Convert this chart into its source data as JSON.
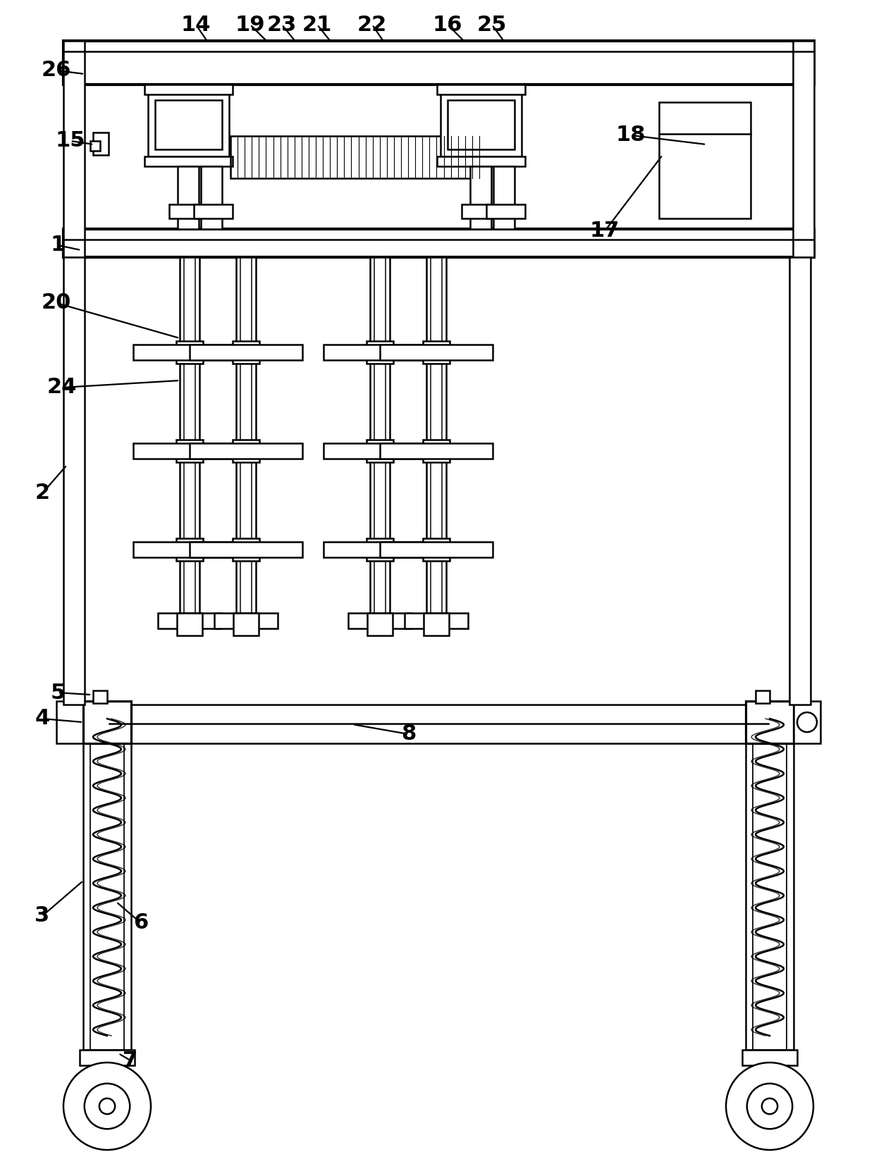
{
  "bg_color": "#ffffff",
  "lc": "#000000",
  "lw": 1.8,
  "tlw": 3.0,
  "fig_w": 12.4,
  "fig_h": 16.52,
  "dpi": 100
}
